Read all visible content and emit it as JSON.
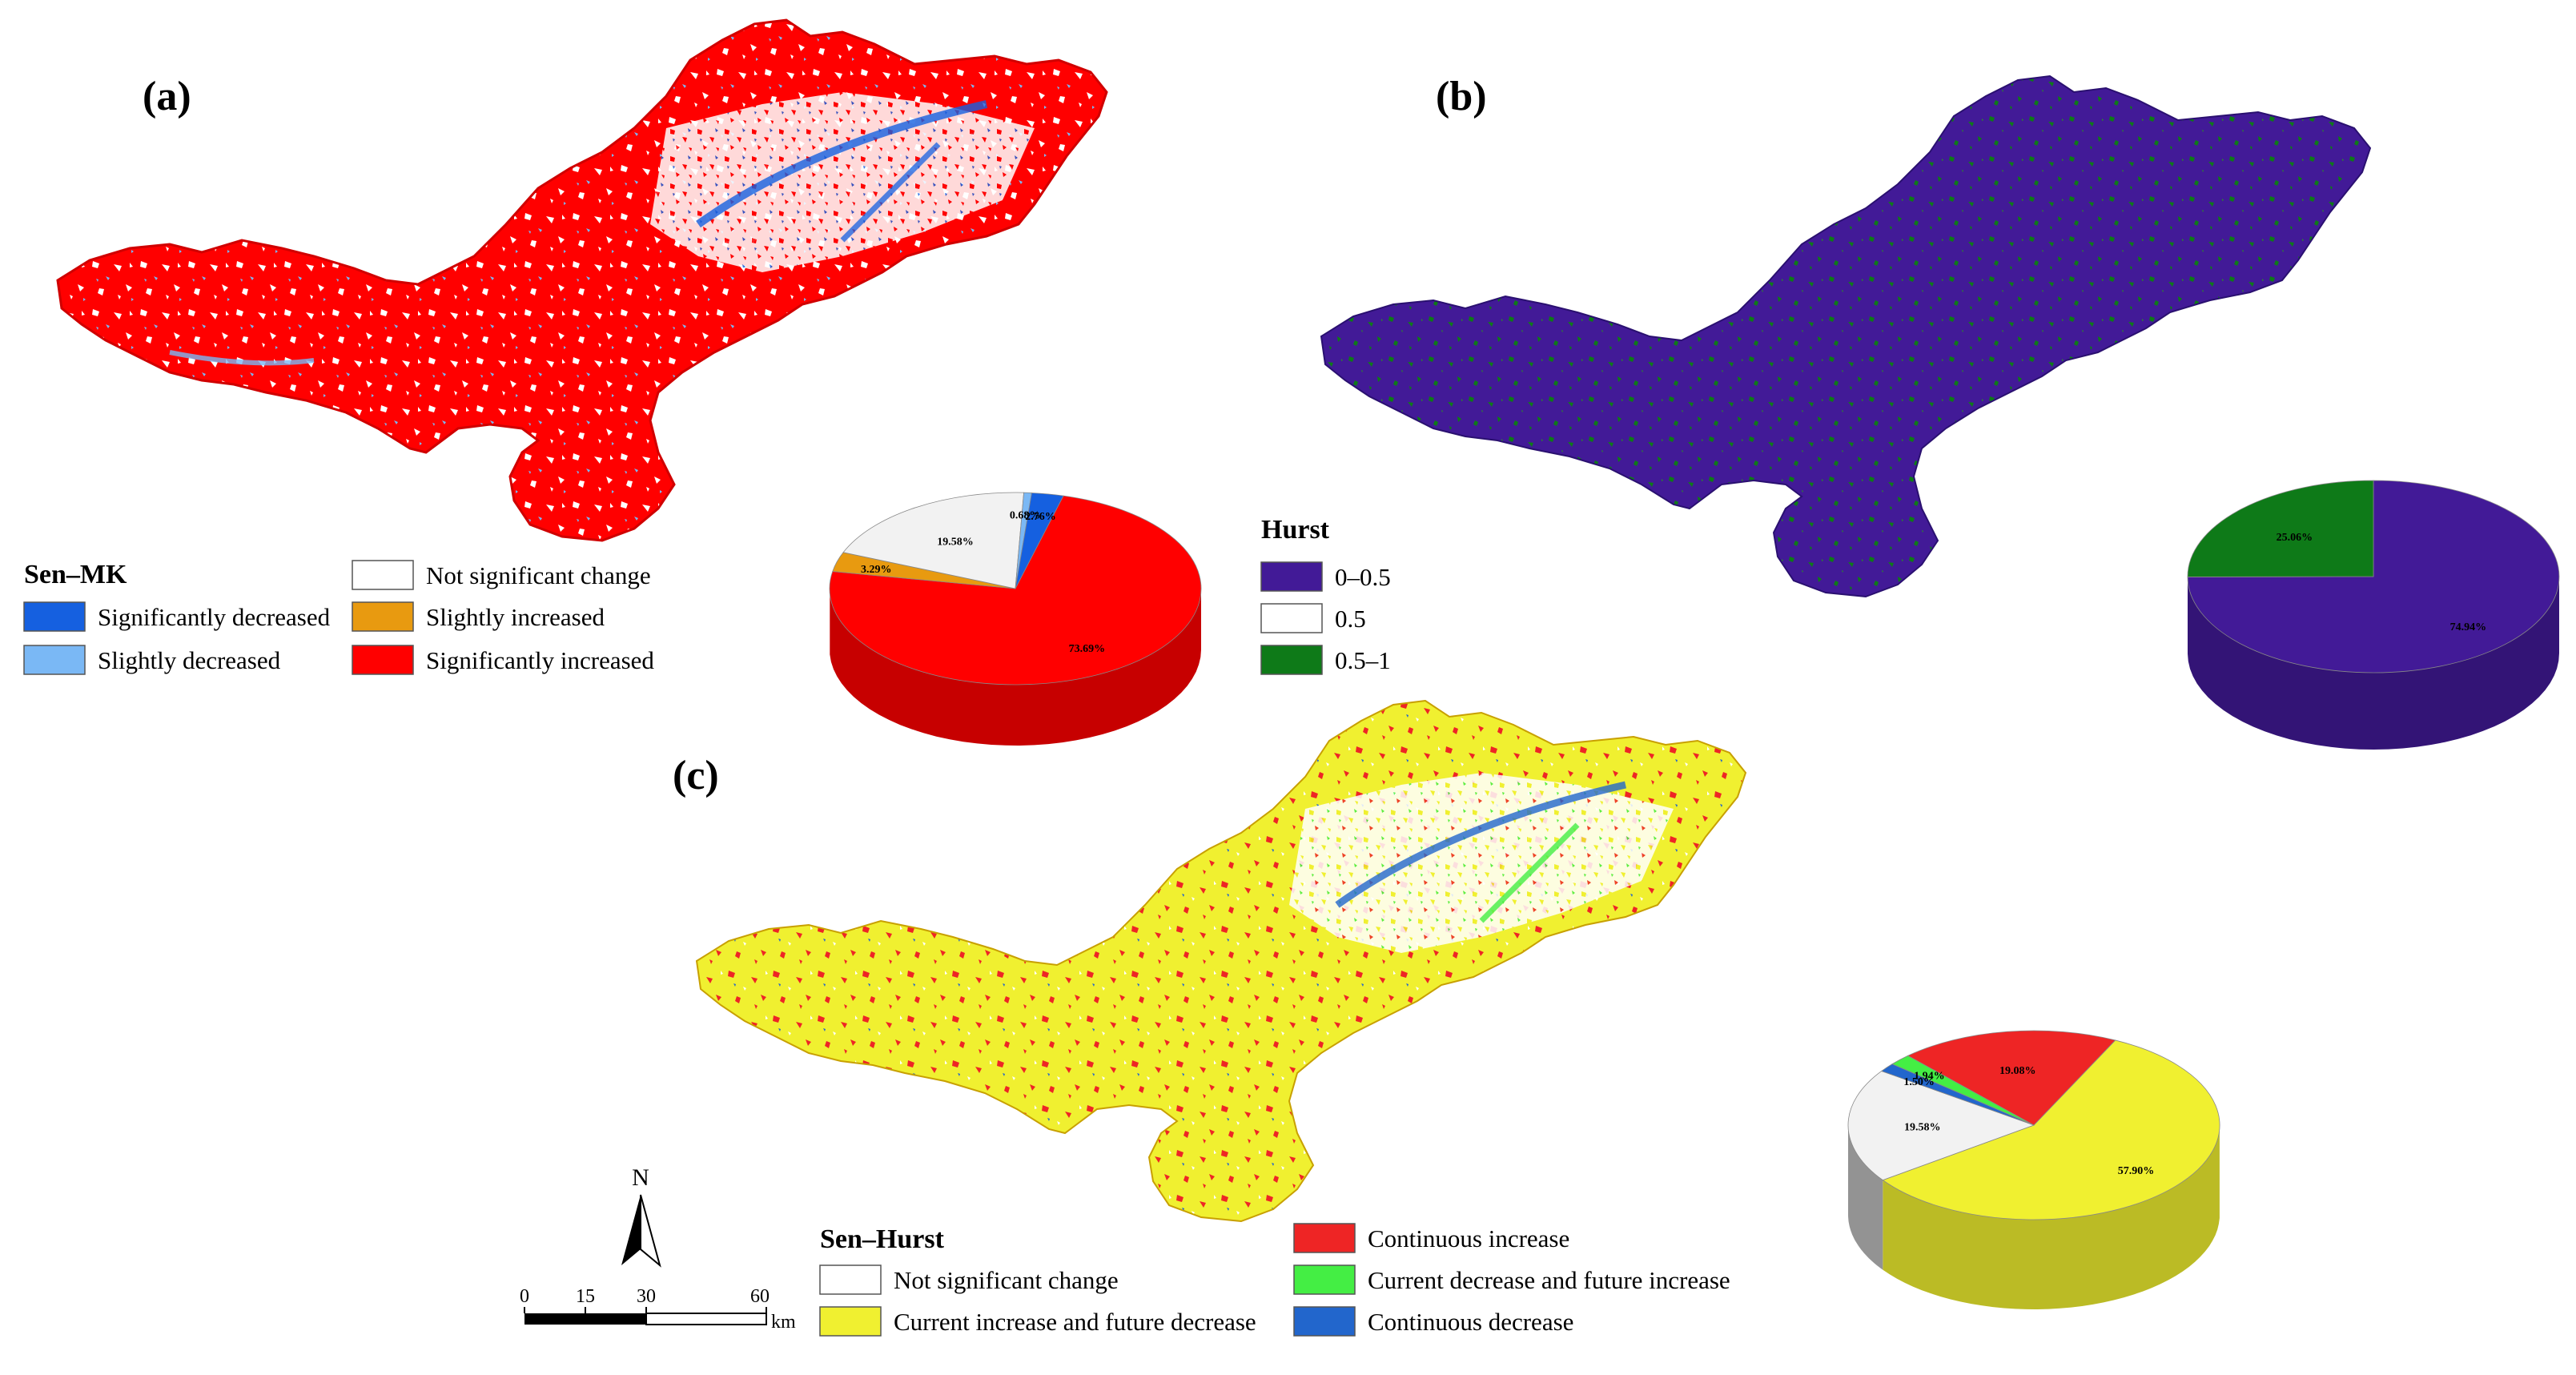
{
  "colors": {
    "sig_dec": "#1560e0",
    "slight_dec": "#7ab8f5",
    "not_sig": "#ffffff",
    "slight_inc": "#e89a10",
    "sig_inc": "#ff0000",
    "hurst_low": "#421a97",
    "hurst_mid": "#ffffff",
    "hurst_high": "#0e7a18",
    "cont_inc": "#ee2525",
    "cur_inc_fut_dec": "#f0f030",
    "cur_dec_fut_inc": "#44ee44",
    "cont_dec": "#2266cc"
  },
  "panels": {
    "a": {
      "label": "(a)",
      "legend_title": "Sen–MK",
      "legend": [
        {
          "label": "Significantly decreased",
          "color": "#1560e0"
        },
        {
          "label": "Slightly decreased",
          "color": "#7ab8f5"
        },
        {
          "label": "Not significant change",
          "color": "#ffffff"
        },
        {
          "label": "Slightly increased",
          "color": "#e89a10"
        },
        {
          "label": "Significantly increased",
          "color": "#ff0000"
        }
      ],
      "pie": [
        {
          "label": "73.69%",
          "value": 73.69,
          "color": "#ff0000"
        },
        {
          "label": "3.29%",
          "value": 3.29,
          "color": "#e89a10"
        },
        {
          "label": "19.58%",
          "value": 19.58,
          "color": "#f2f2f2"
        },
        {
          "label": "0.68%",
          "value": 0.68,
          "color": "#7ab8f5"
        },
        {
          "label": "2.76%",
          "value": 2.76,
          "color": "#1560e0"
        }
      ]
    },
    "b": {
      "label": "(b)",
      "legend_title": "Hurst",
      "legend": [
        {
          "label": "0–0.5",
          "color": "#421a97"
        },
        {
          "label": "0.5",
          "color": "#ffffff"
        },
        {
          "label": "0.5–1",
          "color": "#0e7a18"
        }
      ],
      "pie": [
        {
          "label": "74.94%",
          "value": 74.94,
          "color": "#421a97"
        },
        {
          "label": "25.06%",
          "value": 25.06,
          "color": "#0e7a18"
        }
      ]
    },
    "c": {
      "label": "(c)",
      "legend_title": "Sen–Hurst",
      "legend": [
        {
          "label": "Not significant change",
          "color": "#ffffff"
        },
        {
          "label": "Current increase and future decrease",
          "color": "#f0f030"
        },
        {
          "label": "Continuous increase",
          "color": "#ee2525"
        },
        {
          "label": "Current decrease and future increase",
          "color": "#44ee44"
        },
        {
          "label": "Continuous decrease",
          "color": "#2266cc"
        }
      ],
      "pie": [
        {
          "label": "57.90%",
          "value": 57.9,
          "color": "#f0f030"
        },
        {
          "label": "19.58%",
          "value": 19.58,
          "color": "#f2f2f2"
        },
        {
          "label": "1.50%",
          "value": 1.5,
          "color": "#2266cc"
        },
        {
          "label": "1.94%",
          "value": 1.94,
          "color": "#44ee44"
        },
        {
          "label": "19.08%",
          "value": 19.08,
          "color": "#ee2525"
        }
      ]
    }
  },
  "north_arrow": {
    "label": "N"
  },
  "scale_bar": {
    "ticks": [
      "0",
      "15",
      "30",
      "60"
    ],
    "unit": "km"
  }
}
